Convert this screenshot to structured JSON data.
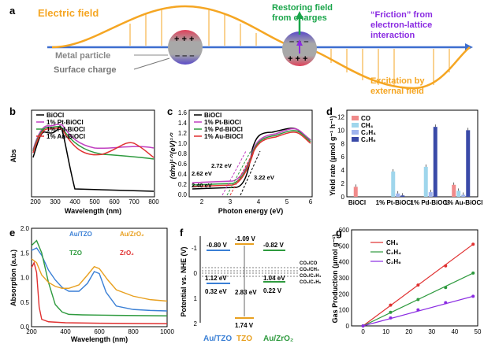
{
  "a": {
    "label": "a",
    "electric_field": "Electric field",
    "restoring_field_1": "Restoring field",
    "restoring_field_2": "from charges",
    "friction_1": "“Friction” from",
    "friction_2": "electron-lattice",
    "friction_3": "interaction",
    "metal_particle": "Metal particle",
    "surface_charge": "Surface charge",
    "excitation_1": "Excitation by",
    "excitation_2": "external field",
    "colors": {
      "field": "#f5a623",
      "green": "#1aa54a",
      "purple": "#8a2be2",
      "axis": "#3d6ecf"
    }
  },
  "b": {
    "label": "b",
    "xlabel": "Wavelength (nm)",
    "ylabel": "Abs",
    "xticks": [
      "200",
      "300",
      "400",
      "500",
      "600",
      "700",
      "800"
    ],
    "legend": [
      "BiOCl",
      "1% Pt-BiOCl",
      "1% Pd-BiOCl",
      "1% Au-BiOCl"
    ],
    "colors": [
      "#000000",
      "#c040c0",
      "#2e9a3e",
      "#e03030"
    ]
  },
  "c": {
    "label": "c",
    "xlabel": "Photon energy (eV)",
    "ylabel": "(αhν)¹ᐟ²(eV)¹ᐟ²",
    "xticks": [
      "2",
      "3",
      "4",
      "5",
      "6"
    ],
    "yticks": [
      "0.0",
      "0.2",
      "0.4",
      "0.6",
      "0.8",
      "1.0",
      "1.2",
      "1.4",
      "1.6"
    ],
    "legend": [
      "BiOCl",
      "1% Pt-BiOCl",
      "1% Pd-BiOCl",
      "1% Au-BiOCl"
    ],
    "annotations": [
      "2.72 eV",
      "2.62 eV",
      "2.40 eV",
      "3.22 eV"
    ]
  },
  "d": {
    "label": "d",
    "ylabel": "Yield rate (μmol g⁻¹ h⁻¹)",
    "yticks": [
      "0",
      "2",
      "4",
      "6",
      "8",
      "10",
      "12"
    ],
    "categories": [
      "BiOCl",
      "1% Pt-BiOCl",
      "1% Pd-BiOCl",
      "1% Au-BiOCl"
    ],
    "legend": [
      "CO",
      "CH₄",
      "C₂H₄",
      "C₂H₆"
    ],
    "colors": [
      "#f08a8a",
      "#9fd6ec",
      "#9fb4ee",
      "#3a4aa8"
    ]
  },
  "e": {
    "label": "e",
    "xlabel": "Wavelength (nm)",
    "ylabel": "Absorption (a.u.)",
    "xticks": [
      "200",
      "400",
      "600",
      "800",
      "1000"
    ],
    "yticks": [
      "0.0",
      "0.5",
      "1.0",
      "1.5",
      "2.0"
    ],
    "legend": [
      "Au/TZO",
      "TZO",
      "Au/ZrO₂",
      "ZrO₂"
    ],
    "colors": [
      "#3a7fd5",
      "#2e9a3e",
      "#e8a020",
      "#e03030"
    ]
  },
  "f": {
    "label": "f",
    "ylabel": "Potential vs. NHE (V)",
    "yticks": [
      "-1",
      "0",
      "1",
      "2"
    ],
    "columns": [
      "Au/TZO",
      "TZO",
      "Au/ZrO₂"
    ],
    "cb": [
      "-0.80 V",
      "-1.09 V",
      "-0.82 V"
    ],
    "gap": [
      "1.12 eV",
      "2.83 eV",
      "1.04 eV"
    ],
    "vb": [
      "0.32 eV",
      "1.74 V",
      "0.22 V"
    ],
    "redox": [
      "CO₂/CO",
      "CO₂/CH₄",
      "CO₂/C₂H₄",
      "CO₂/C₂H₆"
    ]
  },
  "g": {
    "label": "g",
    "xlabel": "Time (h)",
    "ylabel": "Gas Production (μmol g⁻¹)",
    "xticks": [
      "0",
      "10",
      "20",
      "30",
      "40",
      "50"
    ],
    "yticks": [
      "0",
      "100",
      "200",
      "300",
      "400",
      "500",
      "600"
    ],
    "legend": [
      "CH₄",
      "C₂H₄",
      "C₂H₆"
    ],
    "colors": [
      "#e03030",
      "#2e9a3e",
      "#8a2be2"
    ]
  },
  "chart_data": [
    {
      "type": "bar",
      "categories": [
        "BiOCl",
        "1% Pt-BiOCl",
        "1% Pd-BiOCl",
        "1% Au-BiOCl"
      ],
      "ylabel": "Yield rate (μmol g⁻¹ h⁻¹)",
      "ylim": [
        0,
        13
      ],
      "series": [
        {
          "name": "CO",
          "values": [
            1.5,
            0,
            0,
            1.8
          ]
        },
        {
          "name": "CH₄",
          "values": [
            0,
            3.8,
            4.5,
            0.9
          ]
        },
        {
          "name": "C₂H₄",
          "values": [
            0,
            0.5,
            0.7,
            0.3
          ]
        },
        {
          "name": "C₂H₆",
          "values": [
            0,
            0.2,
            10.5,
            10.0
          ]
        }
      ]
    },
    {
      "type": "scatter",
      "xlabel": "Time (h)",
      "ylabel": "Gas Production (μmol g⁻¹)",
      "xlim": [
        -5,
        50
      ],
      "ylim": [
        0,
        600
      ],
      "x": [
        0,
        12,
        24,
        36,
        48
      ],
      "series": [
        {
          "name": "CH₄",
          "values": [
            0,
            130,
            255,
            375,
            510
          ]
        },
        {
          "name": "C₂H₄",
          "values": [
            0,
            85,
            165,
            240,
            330
          ]
        },
        {
          "name": "C₂H₆",
          "values": [
            0,
            50,
            100,
            145,
            185
          ]
        }
      ]
    },
    {
      "type": "line",
      "xlabel": "Wavelength (nm)",
      "ylabel": "Absorption (a.u.)",
      "xlim": [
        200,
        1000
      ],
      "ylim": [
        0,
        2
      ],
      "series": [
        {
          "name": "Au/TZO",
          "x": [
            200,
            230,
            260,
            300,
            340,
            380,
            420,
            480,
            530,
            570,
            600,
            640,
            700,
            800,
            900,
            1000
          ],
          "values": [
            1.55,
            1.6,
            1.45,
            1.15,
            0.95,
            0.8,
            0.72,
            0.72,
            0.88,
            1.12,
            1.08,
            0.7,
            0.42,
            0.35,
            0.33,
            0.32
          ]
        },
        {
          "name": "TZO",
          "x": [
            200,
            230,
            260,
            300,
            340,
            380,
            420,
            500,
            700,
            1000
          ],
          "values": [
            1.65,
            1.75,
            1.5,
            0.9,
            0.45,
            0.3,
            0.25,
            0.24,
            0.23,
            0.22
          ]
        },
        {
          "name": "Au/ZrO₂",
          "x": [
            200,
            230,
            260,
            300,
            340,
            380,
            420,
            480,
            530,
            570,
            600,
            650,
            700,
            800,
            900,
            1000
          ],
          "values": [
            1.38,
            1.3,
            1.05,
            0.9,
            0.82,
            0.78,
            0.78,
            0.85,
            1.05,
            1.22,
            1.18,
            0.95,
            0.75,
            0.62,
            0.55,
            0.52
          ]
        },
        {
          "name": "ZrO₂",
          "x": [
            200,
            215,
            230,
            245,
            260,
            300,
            400,
            600,
            1000
          ],
          "values": [
            1.2,
            1.3,
            1.1,
            0.4,
            0.15,
            0.1,
            0.08,
            0.07,
            0.06
          ]
        }
      ]
    }
  ]
}
